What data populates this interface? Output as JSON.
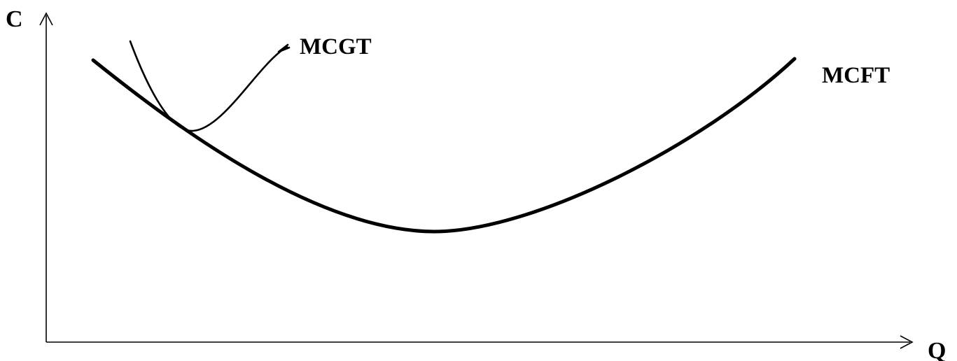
{
  "axes": {
    "y_label": "C",
    "x_label": "Q"
  },
  "curves": {
    "long_run": {
      "label": "MCFT",
      "description_color": "#000000"
    },
    "short_run": {
      "label": "MCGT",
      "description_color": "#000000"
    }
  },
  "colors": {
    "stroke": "#000000",
    "background": "#ffffff"
  }
}
